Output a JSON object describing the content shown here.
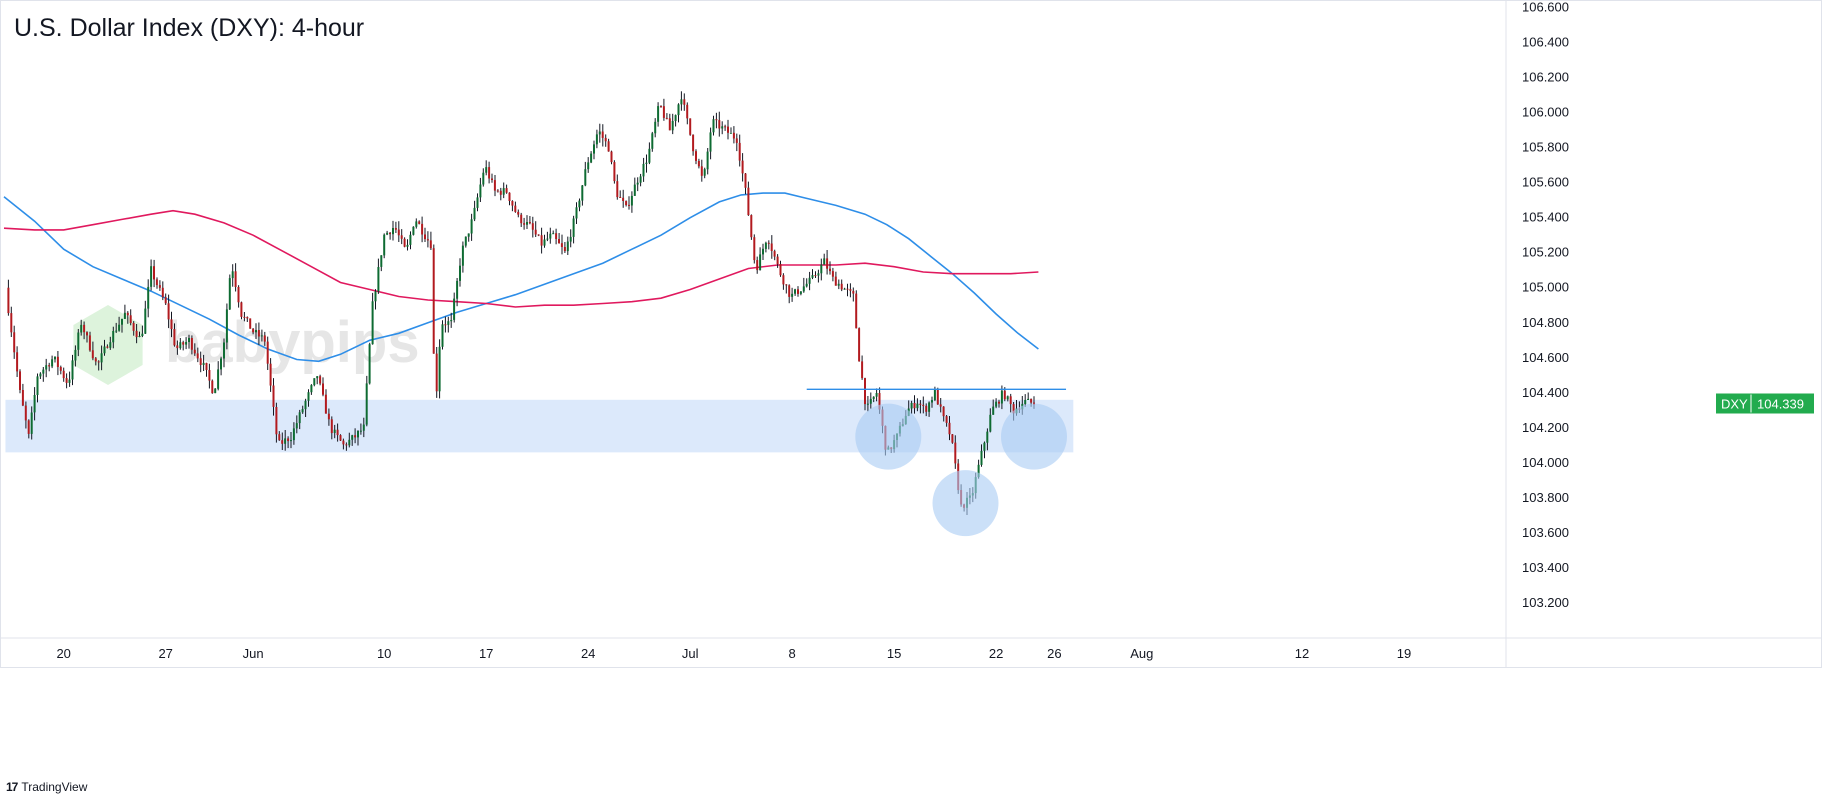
{
  "chart_data": {
    "type": "candlestick",
    "title": "U.S. Dollar Index (DXY): 4-hour",
    "symbol": "DXY",
    "last_price": "104.339",
    "y_ticks": [
      "106.600",
      "106.400",
      "106.200",
      "106.000",
      "105.800",
      "105.600",
      "105.400",
      "105.200",
      "105.000",
      "104.800",
      "104.600",
      "104.400",
      "104.200",
      "104.000",
      "103.800",
      "103.600",
      "103.400",
      "103.200"
    ],
    "ylim": [
      103.0,
      106.62
    ],
    "x_ticks": [
      {
        "label": "20",
        "day": 20
      },
      {
        "label": "27",
        "day": 27
      },
      {
        "label": "Jun",
        "day": 33
      },
      {
        "label": "10",
        "day": 42
      },
      {
        "label": "17",
        "day": 49
      },
      {
        "label": "24",
        "day": 56
      },
      {
        "label": "Jul",
        "day": 63
      },
      {
        "label": "8",
        "day": 70
      },
      {
        "label": "15",
        "day": 77
      },
      {
        "label": "22",
        "day": 84
      },
      {
        "label": "26",
        "day": 88
      },
      {
        "label": "Aug",
        "day": 94
      },
      {
        "label": "12",
        "day": 105
      },
      {
        "label": "19",
        "day": 112
      }
    ],
    "xlim": [
      15.9,
      119.0
    ],
    "ohlc_anchors": [
      [
        16.0,
        105.0
      ],
      [
        17.0,
        104.4
      ],
      [
        17.6,
        104.15
      ],
      [
        18.2,
        104.5
      ],
      [
        19.3,
        104.6
      ],
      [
        20.3,
        104.45
      ],
      [
        21.2,
        104.8
      ],
      [
        22.3,
        104.55
      ],
      [
        23.1,
        104.7
      ],
      [
        24.2,
        104.85
      ],
      [
        25.3,
        104.7
      ],
      [
        26.0,
        105.1
      ],
      [
        27.0,
        104.9
      ],
      [
        27.7,
        104.65
      ],
      [
        28.6,
        104.7
      ],
      [
        29.6,
        104.55
      ],
      [
        30.3,
        104.4
      ],
      [
        31.0,
        104.7
      ],
      [
        31.5,
        105.15
      ],
      [
        32.2,
        104.85
      ],
      [
        33.0,
        104.75
      ],
      [
        33.8,
        104.7
      ],
      [
        34.7,
        104.1
      ],
      [
        35.6,
        104.15
      ],
      [
        36.6,
        104.35
      ],
      [
        37.4,
        104.5
      ],
      [
        38.3,
        104.2
      ],
      [
        39.2,
        104.1
      ],
      [
        40.0,
        104.15
      ],
      [
        40.6,
        104.2
      ],
      [
        41.2,
        104.9
      ],
      [
        42.0,
        105.3
      ],
      [
        42.7,
        105.35
      ],
      [
        43.5,
        105.2
      ],
      [
        44.1,
        105.4
      ],
      [
        44.8,
        105.3
      ],
      [
        45.2,
        105.25
      ],
      [
        45.5,
        104.3
      ],
      [
        45.9,
        104.8
      ],
      [
        46.6,
        104.8
      ],
      [
        47.3,
        105.2
      ],
      [
        48.1,
        105.4
      ],
      [
        48.9,
        105.7
      ],
      [
        49.6,
        105.55
      ],
      [
        50.4,
        105.55
      ],
      [
        51.2,
        105.4
      ],
      [
        52.0,
        105.35
      ],
      [
        52.8,
        105.25
      ],
      [
        53.5,
        105.3
      ],
      [
        54.4,
        105.2
      ],
      [
        55.1,
        105.4
      ],
      [
        55.9,
        105.7
      ],
      [
        56.7,
        105.9
      ],
      [
        57.4,
        105.8
      ],
      [
        57.9,
        105.55
      ],
      [
        58.6,
        105.45
      ],
      [
        59.3,
        105.6
      ],
      [
        60.1,
        105.75
      ],
      [
        60.9,
        106.05
      ],
      [
        61.6,
        105.9
      ],
      [
        62.4,
        106.1
      ],
      [
        63.2,
        105.8
      ],
      [
        63.9,
        105.6
      ],
      [
        64.5,
        105.95
      ],
      [
        65.4,
        105.9
      ],
      [
        66.2,
        105.85
      ],
      [
        66.8,
        105.55
      ],
      [
        67.5,
        105.1
      ],
      [
        68.3,
        105.3
      ],
      [
        69.1,
        105.1
      ],
      [
        69.9,
        104.95
      ],
      [
        70.7,
        105.0
      ],
      [
        71.4,
        105.05
      ],
      [
        72.2,
        105.15
      ],
      [
        72.8,
        105.05
      ],
      [
        73.5,
        105.0
      ],
      [
        74.2,
        104.95
      ],
      [
        74.6,
        104.6
      ],
      [
        75.1,
        104.3
      ],
      [
        75.8,
        104.4
      ],
      [
        76.5,
        104.05
      ],
      [
        77.2,
        104.15
      ],
      [
        77.9,
        104.3
      ],
      [
        78.6,
        104.35
      ],
      [
        79.1,
        104.3
      ],
      [
        79.8,
        104.4
      ],
      [
        80.4,
        104.25
      ],
      [
        80.9,
        104.15
      ],
      [
        81.6,
        103.75
      ],
      [
        82.3,
        103.8
      ],
      [
        83.0,
        104.05
      ],
      [
        83.7,
        104.3
      ],
      [
        84.5,
        104.4
      ],
      [
        85.2,
        104.3
      ],
      [
        85.9,
        104.35
      ],
      [
        86.6,
        104.34
      ]
    ],
    "ohlc_style": {
      "up_color": "#0e6b32",
      "down_color": "#b21a1f",
      "wick_color": "#131722"
    },
    "series": [
      {
        "type": "ma_blue",
        "color": "#2e8ee8",
        "points": [
          [
            15.9,
            105.52
          ],
          [
            18.0,
            105.38
          ],
          [
            20.0,
            105.22
          ],
          [
            22.0,
            105.12
          ],
          [
            24.0,
            105.05
          ],
          [
            26.0,
            104.98
          ],
          [
            28.0,
            104.9
          ],
          [
            30.0,
            104.82
          ],
          [
            32.0,
            104.73
          ],
          [
            34.0,
            104.65
          ],
          [
            36.0,
            104.59
          ],
          [
            37.5,
            104.58
          ],
          [
            39.0,
            104.62
          ],
          [
            41.0,
            104.7
          ],
          [
            43.0,
            104.74
          ],
          [
            45.0,
            104.8
          ],
          [
            47.0,
            104.86
          ],
          [
            49.0,
            104.91
          ],
          [
            51.0,
            104.96
          ],
          [
            53.0,
            105.02
          ],
          [
            55.0,
            105.08
          ],
          [
            57.0,
            105.14
          ],
          [
            59.0,
            105.22
          ],
          [
            61.0,
            105.3
          ],
          [
            63.0,
            105.4
          ],
          [
            65.0,
            105.49
          ],
          [
            66.5,
            105.53
          ],
          [
            68.0,
            105.54
          ],
          [
            69.5,
            105.54
          ],
          [
            71.0,
            105.51
          ],
          [
            73.0,
            105.47
          ],
          [
            75.0,
            105.42
          ],
          [
            76.5,
            105.36
          ],
          [
            78.0,
            105.28
          ],
          [
            79.5,
            105.18
          ],
          [
            81.0,
            105.08
          ],
          [
            82.5,
            104.97
          ],
          [
            84.0,
            104.85
          ],
          [
            85.5,
            104.74
          ],
          [
            86.9,
            104.65
          ]
        ]
      },
      {
        "type": "ma_magenta",
        "color": "#e0195e",
        "points": [
          [
            15.9,
            105.34
          ],
          [
            18.0,
            105.33
          ],
          [
            20.0,
            105.33
          ],
          [
            22.0,
            105.36
          ],
          [
            24.0,
            105.39
          ],
          [
            26.0,
            105.42
          ],
          [
            27.5,
            105.44
          ],
          [
            29.0,
            105.42
          ],
          [
            31.0,
            105.37
          ],
          [
            33.0,
            105.3
          ],
          [
            35.0,
            105.21
          ],
          [
            37.0,
            105.12
          ],
          [
            39.0,
            105.03
          ],
          [
            41.0,
            104.99
          ],
          [
            43.0,
            104.95
          ],
          [
            45.0,
            104.93
          ],
          [
            47.0,
            104.92
          ],
          [
            49.0,
            104.91
          ],
          [
            51.0,
            104.89
          ],
          [
            53.0,
            104.9
          ],
          [
            55.0,
            104.9
          ],
          [
            57.0,
            104.91
          ],
          [
            59.0,
            104.92
          ],
          [
            61.0,
            104.94
          ],
          [
            63.0,
            104.99
          ],
          [
            65.0,
            105.05
          ],
          [
            67.0,
            105.11
          ],
          [
            69.0,
            105.13
          ],
          [
            71.0,
            105.13
          ],
          [
            73.0,
            105.13
          ],
          [
            75.0,
            105.14
          ],
          [
            77.0,
            105.12
          ],
          [
            79.0,
            105.09
          ],
          [
            81.0,
            105.08
          ],
          [
            83.0,
            105.08
          ],
          [
            85.0,
            105.08
          ],
          [
            86.9,
            105.09
          ]
        ]
      }
    ],
    "annotations": [
      {
        "type": "zone",
        "x_from": 16.0,
        "x_to": 89.3,
        "y_from": 104.06,
        "y_to": 104.36,
        "color": "#dce9fb"
      },
      {
        "type": "hline",
        "x_from": 71.0,
        "x_to": 88.8,
        "y": 104.42,
        "color": "#2e8ee8"
      },
      {
        "type": "circle",
        "x": 76.6,
        "y": 104.15,
        "color": "#a8cbf4"
      },
      {
        "type": "circle",
        "x": 81.9,
        "y": 103.77,
        "color": "#a8cbf4"
      },
      {
        "type": "circle",
        "x": 86.6,
        "y": 104.15,
        "color": "#a8cbf4"
      }
    ],
    "grid": false,
    "watermark": "babypips"
  },
  "colors": {
    "price_badge_bg": "#22ab4e",
    "price_badge_text": "#ffffff",
    "axis_line": "#e0e3eb",
    "axis_text": "#131722"
  },
  "footer": {
    "logo": "17",
    "brand": "TradingView"
  }
}
